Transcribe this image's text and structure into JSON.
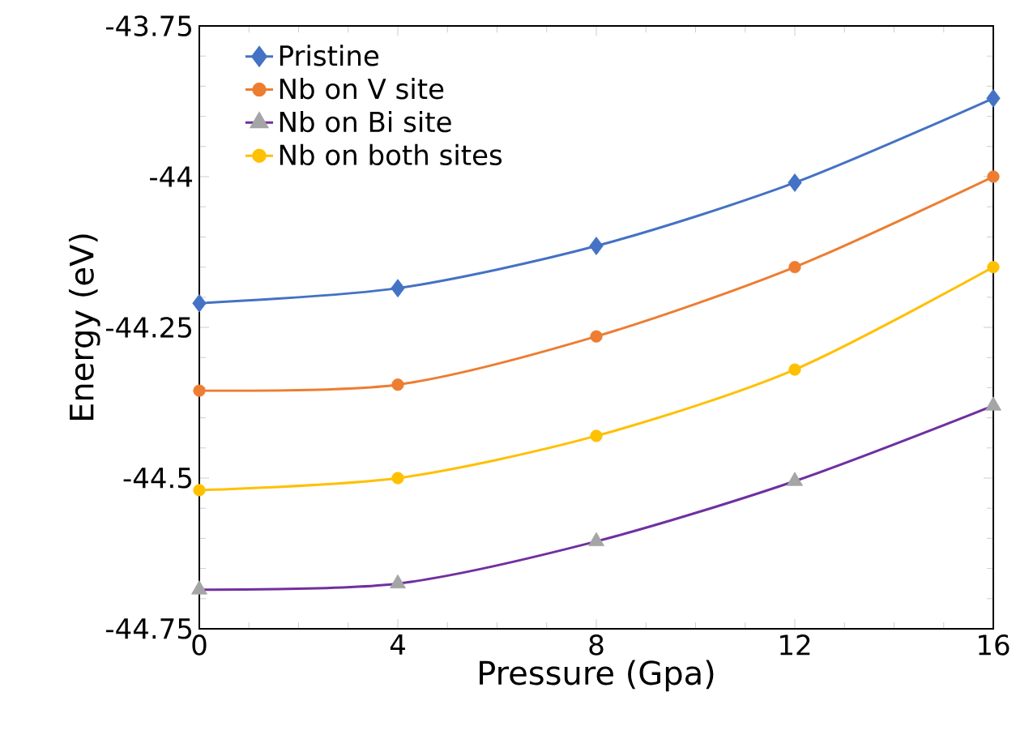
{
  "chart_data": {
    "type": "line",
    "xlabel": "Pressure (Gpa)",
    "ylabel": "Energy (eV)",
    "x": [
      0,
      4,
      8,
      12,
      16
    ],
    "series": [
      {
        "name": "Pristine",
        "color": "#4472c4",
        "marker": "diamond",
        "values": [
          -44.21,
          -44.185,
          -44.115,
          -44.01,
          -43.87
        ]
      },
      {
        "name": "Nb on V site",
        "color": "#ed7d31",
        "marker": "circle",
        "values": [
          -44.355,
          -44.345,
          -44.265,
          -44.15,
          -44.0
        ]
      },
      {
        "name": "Nb on Bi site",
        "color": "#7030a0",
        "colors": [
          "#a5a5a5",
          "#a5a5a5",
          "#a5a5a5",
          "#a5a5a5",
          "#a5a5a5"
        ],
        "marker": "triangle",
        "values": [
          -44.685,
          -44.675,
          -44.605,
          -44.505,
          -44.38
        ]
      },
      {
        "name": "Nb on both sites",
        "color": "#ffc000",
        "marker": "circle",
        "values": [
          -44.52,
          -44.5,
          -44.43,
          -44.32,
          -44.15
        ]
      }
    ],
    "xlim": [
      0,
      16
    ],
    "ylim": [
      -44.75,
      -43.75
    ],
    "xticks": [
      0,
      4,
      8,
      12,
      16
    ],
    "yticks": [
      -44.75,
      -44.5,
      -44.25,
      -44,
      -43.75
    ],
    "grid": false,
    "legend": "top left"
  }
}
